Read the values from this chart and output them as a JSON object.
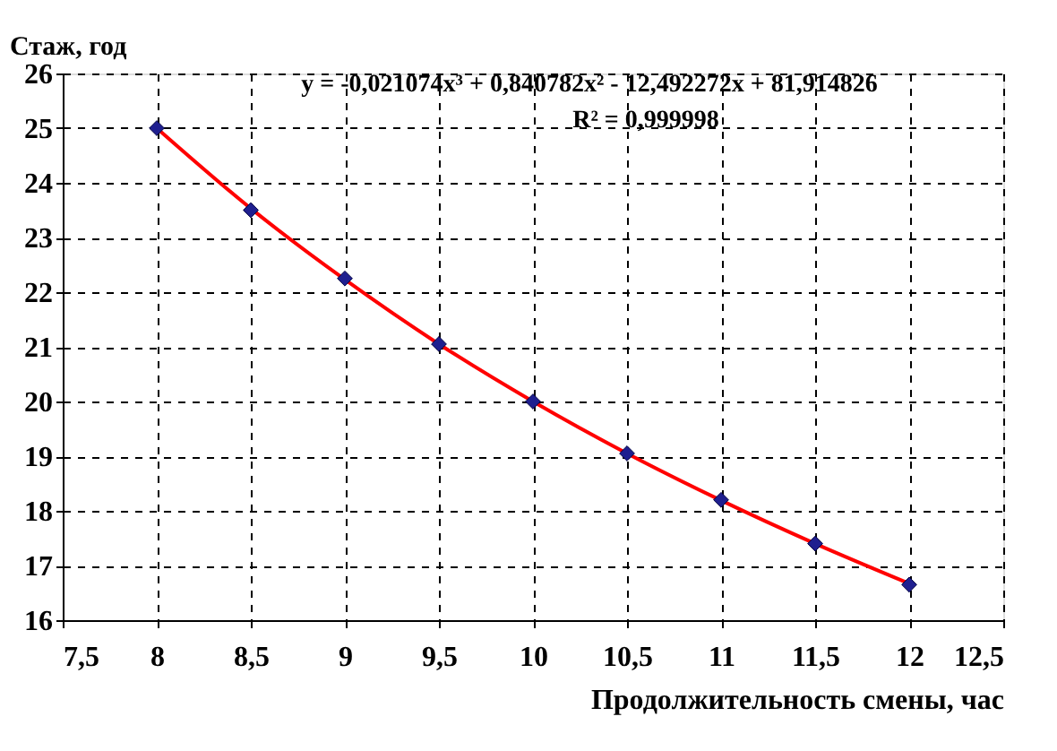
{
  "chart_data": {
    "type": "scatter",
    "xlabel": "Продолжительность смены, час",
    "ylabel": "Стаж, год",
    "x": [
      8,
      8.5,
      9,
      9.5,
      10,
      10.5,
      11,
      11.5,
      12
    ],
    "series": [
      {
        "color": "#1f1f8f",
        "marker": "diamond",
        "values": [
          25,
          23.5,
          22.25,
          21.05,
          20,
          19.05,
          18.2,
          17.4,
          16.65
        ]
      },
      {
        "type": "line",
        "color": "#ff0000",
        "x": [
          8,
          8.5,
          9,
          9.5,
          10,
          10.5,
          11,
          11.5,
          12
        ],
        "values": [
          25,
          23.53,
          22.23,
          21.05,
          20,
          19.05,
          18.19,
          17.4,
          16.67
        ]
      }
    ],
    "annotations": [
      "y = -0,021074x³ + 0,840782x² - 12,492272x + 81,914826",
      "R² = 0,999998"
    ],
    "xlim": [
      7.5,
      12.5
    ],
    "xticks": [
      {
        "value": 7.5,
        "label": "7,5"
      },
      8,
      {
        "value": 8.5,
        "label": "8,5"
      },
      9,
      {
        "value": 9.5,
        "label": "9,5"
      },
      10,
      {
        "value": 10.5,
        "label": "10,5"
      },
      11,
      {
        "value": 11.5,
        "label": "11,5"
      },
      12,
      {
        "value": 12.5,
        "label": "12,5"
      }
    ],
    "ylim": [
      16,
      26
    ],
    "yticks": [
      16,
      17,
      18,
      19,
      20,
      21,
      22,
      23,
      24,
      25,
      26
    ],
    "grid": true
  }
}
